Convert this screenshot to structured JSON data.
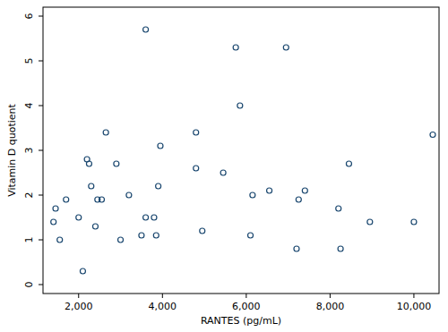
{
  "chart_data": {
    "type": "scatter",
    "x_label": "RANTES (pg/mL)",
    "y_label": "Vitamin D quotient",
    "color": "#1a476f",
    "marker": "hollow-circle",
    "grid": false,
    "x": [
      1400,
      1450,
      1550,
      1700,
      2000,
      2100,
      2200,
      2250,
      2300,
      2400,
      2450,
      2550,
      2650,
      2900,
      3000,
      3200,
      3500,
      3600,
      3600,
      3800,
      3850,
      3900,
      3950,
      4800,
      4800,
      4950,
      5450,
      5750,
      5850,
      6100,
      6150,
      6550,
      6950,
      7200,
      7250,
      7400,
      8200,
      8250,
      8450,
      8950,
      10000,
      10450
    ],
    "values": [
      1.4,
      1.7,
      1.0,
      1.9,
      1.5,
      0.3,
      2.8,
      2.7,
      2.2,
      1.3,
      1.9,
      1.9,
      3.4,
      2.7,
      1.0,
      2.0,
      1.1,
      5.7,
      1.5,
      1.5,
      1.1,
      2.2,
      3.1,
      3.4,
      2.6,
      1.2,
      2.5,
      5.3,
      4.0,
      1.1,
      2.0,
      2.1,
      5.3,
      0.8,
      1.9,
      2.1,
      1.7,
      0.8,
      2.7,
      1.4,
      1.4,
      3.35
    ],
    "xlim": [
      1150,
      10600
    ],
    "ylim": [
      -0.2,
      6.2
    ],
    "xticks": [
      {
        "value": 2000,
        "label": "2,000"
      },
      {
        "value": 4000,
        "label": "4,000"
      },
      {
        "value": 6000,
        "label": "6,000"
      },
      {
        "value": 8000,
        "label": "8,000"
      },
      {
        "value": 10000,
        "label": "10,000"
      }
    ],
    "yticks": [
      0,
      1,
      2,
      3,
      4,
      5,
      6
    ]
  }
}
